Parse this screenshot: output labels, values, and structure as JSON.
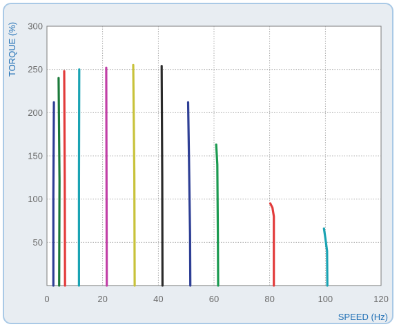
{
  "chart_data": {
    "type": "line",
    "xlabel": "SPEED (Hz)",
    "ylabel": "TORQUE (%)",
    "xlim": [
      0,
      120
    ],
    "ylim": [
      0,
      300
    ],
    "x_ticks": [
      "0",
      "20",
      "40",
      "60",
      "80",
      "100",
      "120"
    ],
    "y_ticks": [
      "50",
      "100",
      "150",
      "200",
      "250",
      "300"
    ],
    "grid": true,
    "series": [
      {
        "color": "#2e3f95",
        "points": [
          [
            2.3,
            0
          ],
          [
            2.3,
            103
          ],
          [
            2.5,
            212
          ]
        ]
      },
      {
        "color": "#1b7a3a",
        "points": [
          [
            4.4,
            0
          ],
          [
            4.5,
            121
          ],
          [
            4.2,
            240
          ]
        ]
      },
      {
        "color": "#e23b3b",
        "points": [
          [
            6.5,
            0
          ],
          [
            6.4,
            121
          ],
          [
            6.2,
            248
          ]
        ]
      },
      {
        "color": "#1aa3b3",
        "points": [
          [
            11.5,
            0
          ],
          [
            11.5,
            125
          ],
          [
            11.6,
            250
          ]
        ]
      },
      {
        "color": "#c13fa6",
        "points": [
          [
            21.5,
            0
          ],
          [
            21.4,
            126
          ],
          [
            21.3,
            252
          ]
        ]
      },
      {
        "color": "#c8c23a",
        "points": [
          [
            31.5,
            0
          ],
          [
            31.4,
            127
          ],
          [
            31.0,
            255
          ]
        ]
      },
      {
        "color": "#2b2b2b",
        "points": [
          [
            41.5,
            0
          ],
          [
            41.4,
            127
          ],
          [
            41.2,
            254
          ]
        ]
      },
      {
        "color": "#2e3f95",
        "points": [
          [
            51.5,
            0
          ],
          [
            51.4,
            60
          ],
          [
            51.0,
            150
          ],
          [
            50.7,
            212
          ]
        ]
      },
      {
        "color": "#1b9a50",
        "points": [
          [
            61.5,
            0
          ],
          [
            61.4,
            60
          ],
          [
            61.2,
            140
          ],
          [
            60.8,
            163
          ]
        ]
      },
      {
        "color": "#e23b3b",
        "points": [
          [
            81.5,
            0
          ],
          [
            81.5,
            80
          ],
          [
            81.0,
            90
          ],
          [
            80.2,
            95
          ]
        ]
      },
      {
        "color": "#1aa3b3",
        "points": [
          [
            100.7,
            0
          ],
          [
            100.6,
            40
          ],
          [
            100.0,
            55
          ],
          [
            99.5,
            66
          ]
        ]
      }
    ]
  }
}
